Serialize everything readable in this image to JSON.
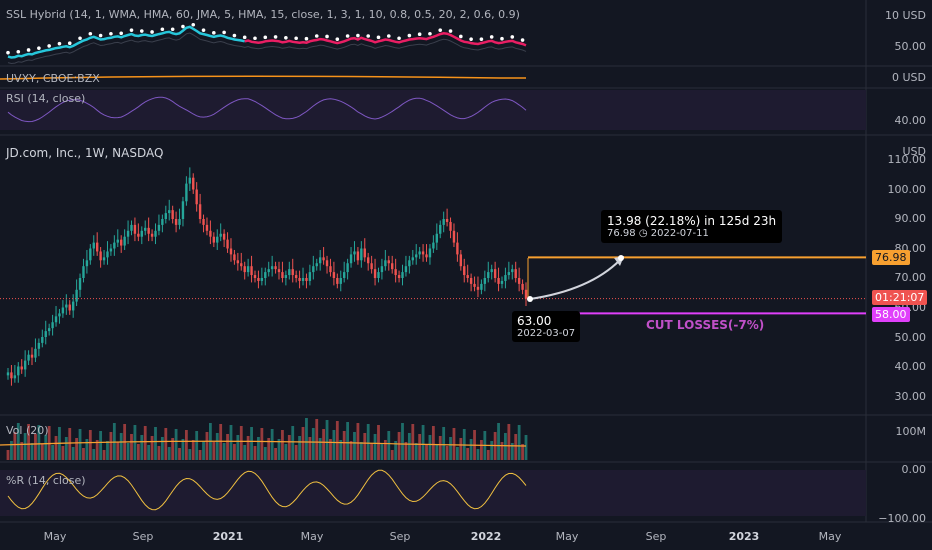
{
  "panes": {
    "ssl": {
      "label": "SSL Hybrid (14, 1, WMA, HMA, 60, JMA, 5, HMA, 15, close, 1, 3, 1, 10, 0.8, 0.5, 20, 2, 0.6, 0.9)",
      "axis": [
        "10 USD",
        "50.00"
      ]
    },
    "vix": {
      "label": "UVXY, CBOE:BZX",
      "axis": [
        "0 USD"
      ]
    },
    "rsi": {
      "label": "RSI (14, close)",
      "axis": [
        "40.00"
      ]
    },
    "main": {
      "label": "JD.com, Inc., 1W, NASDAQ",
      "currency": "USD"
    },
    "vol": {
      "label": "Vol (20)",
      "axis": [
        "100M"
      ]
    },
    "wr": {
      "label": "%R (14, close)",
      "axis": [
        "0.00",
        "−100.00"
      ]
    }
  },
  "price_axis": [
    "110.00",
    "100.00",
    "90.00",
    "80.00",
    "70.00",
    "60.00",
    "50.00",
    "40.00",
    "30.00"
  ],
  "badges": {
    "target": "76.98",
    "countdown": "01:21:07",
    "stop": "58.00"
  },
  "annotations": {
    "projection_main": "13.98 (22.18%) in 125d 23h",
    "projection_target": "76.98",
    "projection_date": "2022-07-11",
    "entry_price": "63.00",
    "entry_date": "2022-03-07",
    "cut_losses": "CUT LOSSES(-7%)"
  },
  "time_axis": [
    {
      "label": "May",
      "year": false
    },
    {
      "label": "Sep",
      "year": false
    },
    {
      "label": "2021",
      "year": true
    },
    {
      "label": "May",
      "year": false
    },
    {
      "label": "Sep",
      "year": false
    },
    {
      "label": "2022",
      "year": true
    },
    {
      "label": "May",
      "year": false
    },
    {
      "label": "Sep",
      "year": false
    },
    {
      "label": "2023",
      "year": true
    },
    {
      "label": "May",
      "year": false
    }
  ],
  "colors": {
    "background": "#131722",
    "up": "#26a69a",
    "down": "#ef5350",
    "target": "#f7a030",
    "stop": "#e040fb",
    "countdown": "#ef5350",
    "wr_line": "#f0c040",
    "vol_ma": "#f7a030",
    "uvxy": "#f7931a"
  },
  "chart_data": {
    "type": "candlestick",
    "title": "JD.com, Inc., 1W, NASDAQ",
    "ylim": [
      25,
      115
    ],
    "close_series": [
      38,
      36,
      37,
      40,
      39,
      42,
      44,
      43,
      46,
      48,
      50,
      52,
      53,
      55,
      57,
      58,
      60,
      61,
      59,
      62,
      66,
      70,
      74,
      76,
      80,
      82,
      79,
      76,
      77,
      79,
      80,
      82,
      83,
      81,
      84,
      86,
      88,
      85,
      84,
      86,
      87,
      85,
      84,
      86,
      88,
      90,
      92,
      93,
      90,
      88,
      90,
      96,
      102,
      104,
      100,
      95,
      90,
      88,
      86,
      84,
      82,
      84,
      85,
      83,
      80,
      78,
      76,
      75,
      74,
      72,
      74,
      71,
      70,
      69,
      70,
      72,
      73,
      74,
      73,
      72,
      70,
      71,
      73,
      71,
      70,
      69,
      70,
      69,
      72,
      74,
      75,
      77,
      76,
      74,
      72,
      70,
      68,
      70,
      72,
      75,
      78,
      79,
      76,
      80,
      77,
      75,
      73,
      70,
      72,
      74,
      76,
      75,
      73,
      71,
      70,
      72,
      74,
      76,
      77,
      78,
      79,
      78,
      77,
      80,
      82,
      85,
      88,
      90,
      89,
      86,
      82,
      78,
      74,
      71,
      70,
      68,
      67,
      66,
      68,
      70,
      72,
      73,
      70,
      68,
      69,
      71,
      72,
      73,
      70,
      68,
      66,
      63
    ],
    "annotations": {
      "target": 76.98,
      "current": 63.0,
      "stop": 58.0,
      "change": 13.98,
      "change_pct": 22.18
    }
  }
}
